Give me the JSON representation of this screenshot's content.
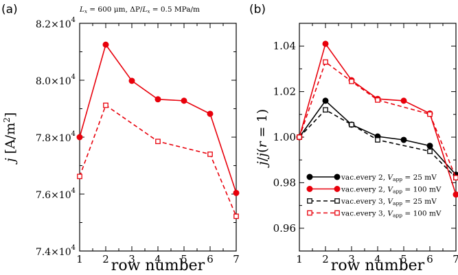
{
  "chart_data": [
    {
      "panel": "(a)",
      "type": "line",
      "annotation": "L_x = 600 μm, ΔP/L_x = 0.5 MPa/m",
      "xlabel": "row number",
      "ylabel": "j [A/m²]",
      "xlim": [
        1,
        7
      ],
      "ylim": [
        74000,
        82000
      ],
      "x_ticks": [
        "1",
        "2",
        "3",
        "4",
        "5",
        "6",
        "7"
      ],
      "y_ticks": [
        {
          "value": 74000,
          "mant": "7.4×10",
          "exp": "4"
        },
        {
          "value": 76000,
          "mant": "7.6×10",
          "exp": "4"
        },
        {
          "value": 78000,
          "mant": "7.8×10",
          "exp": "4"
        },
        {
          "value": 80000,
          "mant": "8.0×10",
          "exp": "4"
        },
        {
          "value": 82000,
          "mant": "8.2×10",
          "exp": "4"
        }
      ],
      "x": [
        1,
        2,
        3,
        4,
        5,
        6,
        7
      ],
      "series": [
        {
          "values": [
            78000,
            81250,
            79980,
            79330,
            79280,
            78820,
            76040
          ],
          "color": "#e8000b",
          "dashed": false,
          "marker": "circle-filled"
        },
        {
          "values": [
            76620,
            79120,
            null,
            77850,
            null,
            77400,
            75220
          ],
          "color": "#e8000b",
          "dashed": true,
          "marker": "square-open"
        }
      ],
      "grid": false
    },
    {
      "panel": "(b)",
      "type": "line",
      "xlabel": "row number",
      "ylabel": "j/j(r = 1)",
      "xlim": [
        1,
        7
      ],
      "ylim": [
        0.95,
        1.05
      ],
      "x_ticks": [
        "1",
        "2",
        "3",
        "4",
        "5",
        "6",
        "7"
      ],
      "y_ticks": [
        "0.96",
        "0.98",
        "1.00",
        "1.02",
        "1.04"
      ],
      "x": [
        1,
        2,
        3,
        4,
        5,
        6,
        7
      ],
      "series": [
        {
          "name": "vac.every 2, V_app = 25 mV",
          "values": [
            1.0,
            1.016,
            1.0055,
            1.0003,
            0.9988,
            0.9962,
            0.9835
          ],
          "color": "#000000",
          "dashed": false,
          "marker": "circle-filled"
        },
        {
          "name": "vac.every 2, V_app = 100 mV",
          "values": [
            1.0,
            1.041,
            1.025,
            1.0168,
            1.016,
            1.0104,
            0.9748
          ],
          "color": "#e8000b",
          "dashed": false,
          "marker": "circle-filled"
        },
        {
          "name": "vac.every 3, V_app = 25 mV",
          "values": [
            1.0,
            1.012,
            1.0055,
            0.9988,
            null,
            0.9938,
            0.9822
          ],
          "color": "#000000",
          "dashed": true,
          "marker": "square-open"
        },
        {
          "name": "vac.every 3, V_app = 100 mV",
          "values": [
            1.0,
            1.033,
            1.0245,
            1.0163,
            null,
            1.0101,
            0.9822
          ],
          "color": "#e8000b",
          "dashed": true,
          "marker": "square-open"
        }
      ],
      "legend": "bottom-left",
      "grid": false
    }
  ]
}
